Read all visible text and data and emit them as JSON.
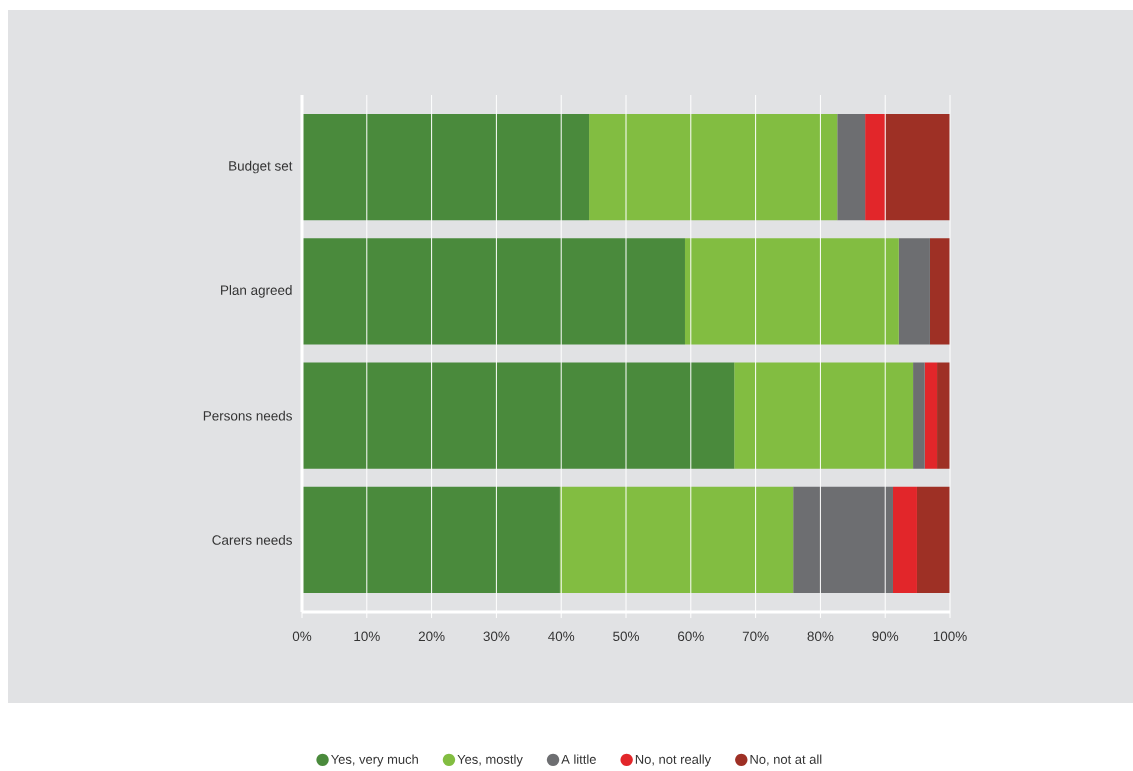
{
  "chart_data": {
    "type": "bar",
    "orientation": "horizontal",
    "stacked": true,
    "categories": [
      "Budget set",
      "Plan agreed",
      "Persons needs",
      "Carers needs"
    ],
    "series": [
      {
        "name": "Yes, very much",
        "color": "#4a8a3c",
        "values": [
          44.3,
          59.1,
          66.7,
          39.8
        ]
      },
      {
        "name": "Yes, mostly",
        "color": "#82bd41",
        "values": [
          38.3,
          33.0,
          27.6,
          36.0
        ]
      },
      {
        "name": "A little",
        "color": "#6d6e71",
        "values": [
          4.3,
          4.8,
          1.8,
          15.4
        ]
      },
      {
        "name": "No, not really",
        "color": "#e2262a",
        "values": [
          3.1,
          0,
          1.9,
          3.7
        ]
      },
      {
        "name": "No, not at all",
        "color": "#9e3025",
        "values": [
          10.0,
          3.1,
          2.0,
          5.1
        ]
      }
    ],
    "xlim": [
      0,
      100
    ],
    "xticks": [
      {
        "value": 0,
        "label": "0%"
      },
      {
        "value": 10,
        "label": "10%"
      },
      {
        "value": 20,
        "label": "20%"
      },
      {
        "value": 30,
        "label": "30%"
      },
      {
        "value": 40,
        "label": "40%"
      },
      {
        "value": 50,
        "label": "50%"
      },
      {
        "value": 60,
        "label": "60%"
      },
      {
        "value": 70,
        "label": "70%"
      },
      {
        "value": 80,
        "label": "80%"
      },
      {
        "value": 90,
        "label": "90%"
      },
      {
        "value": 100,
        "label": "100%"
      }
    ],
    "grid": "x",
    "legend": "bottom"
  }
}
